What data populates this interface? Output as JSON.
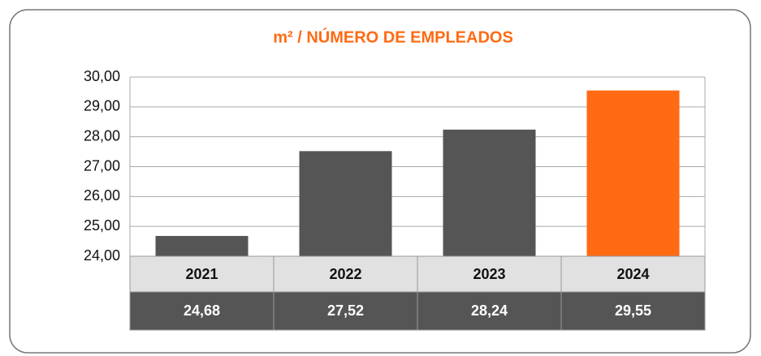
{
  "chart_data": {
    "type": "bar",
    "title": "m² / NÚMERO DE EMPLEADOS",
    "categories": [
      "2021",
      "2022",
      "2023",
      "2024"
    ],
    "values": [
      24.68,
      27.52,
      28.24,
      29.55
    ],
    "value_labels": [
      "24,68",
      "27,52",
      "28,24",
      "29,55"
    ],
    "colors": [
      "#555555",
      "#555555",
      "#555555",
      "#ff6a13"
    ],
    "title_color": "#ff6a13",
    "ylim": [
      24,
      30
    ],
    "yticks": [
      {
        "value": 24,
        "label": "24,00"
      },
      {
        "value": 25,
        "label": "25,00"
      },
      {
        "value": 26,
        "label": "26,00"
      },
      {
        "value": 27,
        "label": "27,00"
      },
      {
        "value": 28,
        "label": "28,00"
      },
      {
        "value": 29,
        "label": "29,00"
      },
      {
        "value": 30,
        "label": "30,00"
      }
    ],
    "grid": true
  }
}
